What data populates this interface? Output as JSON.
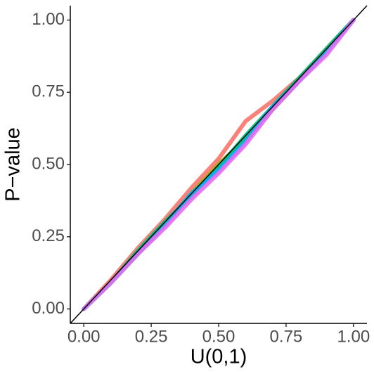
{
  "chart_data": {
    "type": "line",
    "x_label": "U(0,1)",
    "y_label": "P−value",
    "x": [
      0,
      0.1,
      0.2,
      0.3,
      0.4,
      0.5,
      0.6,
      0.7,
      0.8,
      0.9,
      1
    ],
    "series": [
      {
        "color": "#F8766D",
        "values": [
          0,
          0.1,
          0.21,
          0.31,
          0.42,
          0.52,
          0.65,
          0.72,
          0.8,
          0.9,
          1
        ]
      },
      {
        "color": "#A3A500",
        "values": [
          0,
          0.09,
          0.19,
          0.29,
          0.4,
          0.5,
          0.59,
          0.69,
          0.79,
          0.9,
          1
        ]
      },
      {
        "color": "#00BF7D",
        "values": [
          0,
          0.09,
          0.2,
          0.3,
          0.39,
          0.49,
          0.6,
          0.7,
          0.8,
          0.9,
          1
        ]
      },
      {
        "color": "#00B0F6",
        "values": [
          0,
          0.09,
          0.19,
          0.29,
          0.4,
          0.48,
          0.58,
          0.7,
          0.79,
          0.89,
          1
        ]
      },
      {
        "color": "#E76BF3",
        "values": [
          0,
          0.09,
          0.19,
          0.28,
          0.38,
          0.47,
          0.57,
          0.69,
          0.79,
          0.88,
          1
        ]
      }
    ],
    "reference_line": {
      "slope": 1,
      "intercept": 0,
      "color": "#000000"
    },
    "xlim": [
      -0.05,
      1.05
    ],
    "ylim": [
      -0.05,
      1.05
    ],
    "xticks": [
      {
        "value": 0,
        "label": "0.00"
      },
      {
        "value": 0.25,
        "label": "0.25"
      },
      {
        "value": 0.5,
        "label": "0.50"
      },
      {
        "value": 0.75,
        "label": "0.75"
      },
      {
        "value": 1,
        "label": "1.00"
      }
    ],
    "yticks": [
      {
        "value": 0,
        "label": "0.00"
      },
      {
        "value": 0.25,
        "label": "0.25"
      },
      {
        "value": 0.5,
        "label": "0.50"
      },
      {
        "value": 0.75,
        "label": "0.75"
      },
      {
        "value": 1,
        "label": "1.00"
      }
    ],
    "grid": false
  }
}
